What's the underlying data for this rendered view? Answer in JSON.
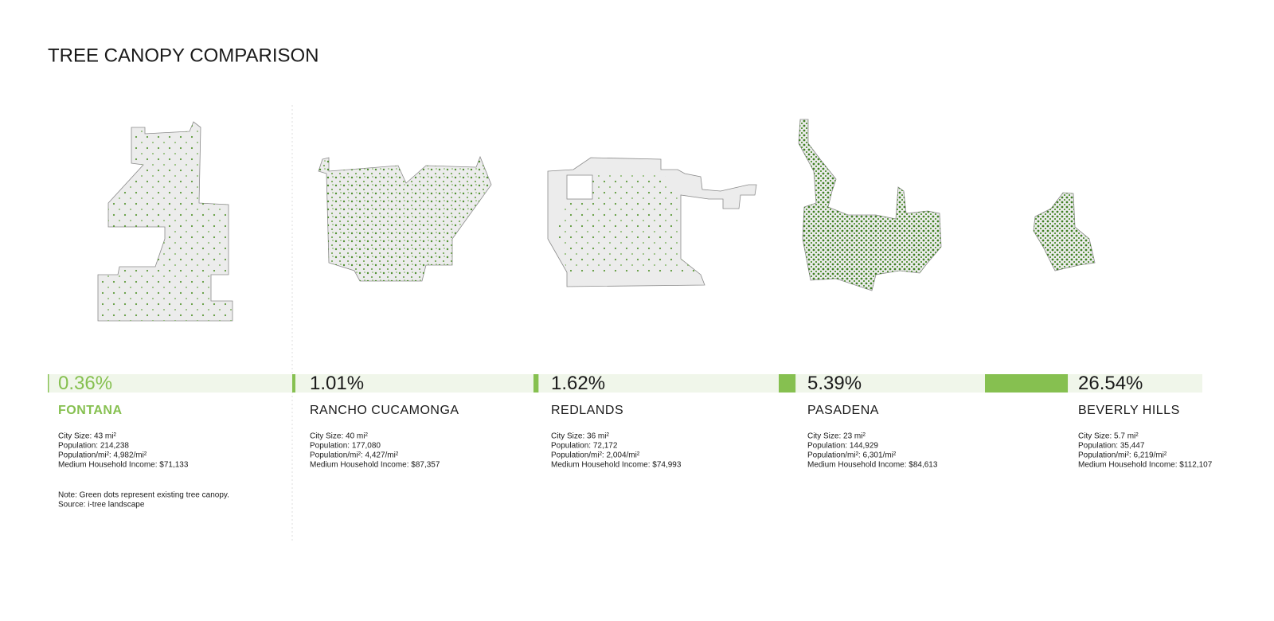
{
  "chart_data": {
    "type": "bar",
    "title": "TREE CANOPY COMPARISON",
    "categories": [
      "FONTANA",
      "RANCHO CUCAMONGA",
      "REDLANDS",
      "PASADENA",
      "BEVERLY HILLS"
    ],
    "values": [
      0.36,
      1.01,
      1.62,
      5.39,
      26.54
    ],
    "value_labels": [
      "0.36%",
      "1.01%",
      "1.62%",
      "5.39%",
      "26.54%"
    ],
    "color": "#86c050",
    "track_color": "#f0f6ea",
    "details": [
      [
        "City Size: 43 mi²",
        "Population: 214,238",
        "Population/mi²: 4,982/mi²",
        "Medium Household Income: $71,133"
      ],
      [
        "City Size: 40 mi²",
        "Population: 177,080",
        "Population/mi²: 4,427/mi²",
        "Medium Household Income: $87,357"
      ],
      [
        "City Size: 36 mi²",
        "Population: 72,172",
        "Population/mi²: 2,004/mi²",
        "Medium Household Income: $74,993"
      ],
      [
        "City Size: 23 mi²",
        "Population: 144,929",
        "Population/mi²: 6,301/mi²",
        "Medium Household Income: $84,613"
      ],
      [
        "City Size: 5.7 mi²",
        "Population: 35,447",
        "Population/mi²: 6,219/mi²",
        "Medium Household Income: $112,107"
      ]
    ],
    "note": "Note: Green dots represent existing tree canopy.",
    "source": "Source: i-tree landscape"
  }
}
